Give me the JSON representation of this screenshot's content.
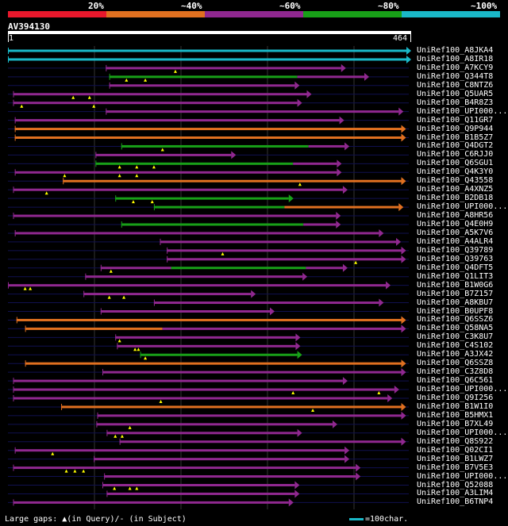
{
  "legend": {
    "segments": [
      {
        "label": "20%",
        "color": "#e8182c"
      },
      {
        "label": "~40%",
        "color": "#e07020"
      },
      {
        "label": "~60%",
        "color": "#902890"
      },
      {
        "label": "~80%",
        "color": "#18a018"
      },
      {
        "label": "~100%",
        "color": "#1ab8c8"
      }
    ]
  },
  "query": {
    "id": "AV394130",
    "start": "1",
    "end": "464",
    "length": 464
  },
  "colors": {
    "cyan": "#1ab8c8",
    "green": "#18a018",
    "purple": "#902890",
    "orange": "#e07020",
    "red": "#e8182c",
    "gap": "#ffff00"
  },
  "hits": [
    {
      "label": "UniRef100_A8JKA4",
      "color": "cyan",
      "start": 0,
      "end": 464,
      "gaps_q": [],
      "gaps_s": []
    },
    {
      "label": "UniRef100_A8IR18",
      "color": "cyan",
      "start": 0,
      "end": 464,
      "gaps_q": [],
      "gaps_s": []
    },
    {
      "label": "UniRef100_A7KCY9",
      "color": "purple",
      "start": 114,
      "end": 388,
      "gaps_q": [
        195
      ],
      "gaps_s": []
    },
    {
      "label": "UniRef100_Q344T8",
      "color": "green",
      "start": 118,
      "end": 337,
      "gaps_q": [
        138,
        160
      ],
      "gaps_s": [],
      "tail": {
        "color": "purple",
        "start": 337,
        "end": 415
      }
    },
    {
      "label": "UniRef100_C8NTZ6",
      "color": "purple",
      "start": 118,
      "end": 334,
      "gaps_q": [],
      "gaps_s": []
    },
    {
      "label": "UniRef100_Q5UAR5",
      "color": "purple",
      "start": 6,
      "end": 348,
      "gaps_q": [
        76,
        95
      ],
      "gaps_s": []
    },
    {
      "label": "UniRef100_B4R8Z3",
      "color": "purple",
      "start": 6,
      "end": 337,
      "gaps_q": [
        16,
        100
      ],
      "gaps_s": []
    },
    {
      "label": "UniRef100_UPI000...",
      "color": "purple",
      "start": 114,
      "end": 455,
      "gaps_q": [],
      "gaps_s": []
    },
    {
      "label": "UniRef100_Q11GR7",
      "color": "purple",
      "start": 8,
      "end": 386,
      "gaps_q": [],
      "gaps_s": []
    },
    {
      "label": "UniRef100_Q9P944",
      "color": "orange",
      "start": 8,
      "end": 458,
      "gaps_q": [],
      "gaps_s": []
    },
    {
      "label": "UniRef100_B1B5Z7",
      "color": "orange",
      "start": 8,
      "end": 458,
      "gaps_q": [],
      "gaps_s": []
    },
    {
      "label": "UniRef100_Q4DGT2",
      "color": "green",
      "start": 132,
      "end": 350,
      "gaps_q": [
        180
      ],
      "gaps_s": [],
      "tail": {
        "color": "purple",
        "start": 350,
        "end": 392
      }
    },
    {
      "label": "UniRef100_C6RJJ0",
      "color": "purple",
      "start": 102,
      "end": 260,
      "gaps_q": [],
      "gaps_s": []
    },
    {
      "label": "UniRef100_Q6SGU1",
      "color": "green",
      "start": 102,
      "end": 332,
      "gaps_q": [
        130,
        150,
        170
      ],
      "gaps_s": [],
      "tail": {
        "color": "purple",
        "start": 332,
        "end": 383
      }
    },
    {
      "label": "UniRef100_Q4K3Y0",
      "color": "purple",
      "start": 8,
      "end": 383,
      "gaps_q": [
        66,
        130,
        150
      ],
      "gaps_s": []
    },
    {
      "label": "UniRef100_Q43558",
      "color": "orange",
      "start": 64,
      "end": 458,
      "gaps_q": [
        340
      ],
      "gaps_s": []
    },
    {
      "label": "UniRef100_A4XNZ5",
      "color": "purple",
      "start": 6,
      "end": 390,
      "gaps_q": [
        45
      ],
      "gaps_s": []
    },
    {
      "label": "UniRef100_B2DB18",
      "color": "green",
      "start": 125,
      "end": 327,
      "gaps_q": [
        146,
        168
      ],
      "gaps_s": []
    },
    {
      "label": "UniRef100_UPI000...",
      "color": "green",
      "start": 170,
      "end": 322,
      "gaps_q": [],
      "gaps_s": [],
      "tail": {
        "color": "orange",
        "start": 322,
        "end": 455
      }
    },
    {
      "label": "UniRef100_A8HR56",
      "color": "purple",
      "start": 6,
      "end": 382,
      "gaps_q": [],
      "gaps_s": []
    },
    {
      "label": "UniRef100_Q4E0H9",
      "color": "green",
      "start": 132,
      "end": 344,
      "gaps_q": [],
      "gaps_s": [],
      "tail": {
        "color": "purple",
        "start": 344,
        "end": 382
      }
    },
    {
      "label": "UniRef100_A5K7V6",
      "color": "purple",
      "start": 8,
      "end": 432,
      "gaps_q": [],
      "gaps_s": []
    },
    {
      "label": "UniRef100_A4ALR4",
      "color": "purple",
      "start": 177,
      "end": 452,
      "gaps_q": [],
      "gaps_s": []
    },
    {
      "label": "UniRef100_Q39789",
      "color": "purple",
      "start": 185,
      "end": 458,
      "gaps_q": [
        250
      ],
      "gaps_s": []
    },
    {
      "label": "UniRef100_Q39763",
      "color": "purple",
      "start": 185,
      "end": 458,
      "gaps_q": [
        405
      ],
      "gaps_s": []
    },
    {
      "label": "UniRef100_Q4DFT5",
      "color": "green",
      "start": 190,
      "end": 347,
      "gaps_q": [
        120
      ],
      "gaps_s": [],
      "lead": {
        "color": "purple",
        "start": 108,
        "end": 190
      },
      "tail": {
        "color": "purple",
        "start": 347,
        "end": 390
      }
    },
    {
      "label": "UniRef100_Q1LIT3",
      "color": "purple",
      "start": 90,
      "end": 343,
      "gaps_q": [],
      "gaps_s": []
    },
    {
      "label": "UniRef100_B1W0G6",
      "color": "purple",
      "start": 0,
      "end": 440,
      "gaps_q": [
        20,
        26
      ],
      "gaps_s": []
    },
    {
      "label": "UniRef100_B7Z157",
      "color": "purple",
      "start": 88,
      "end": 283,
      "gaps_q": [
        118,
        135
      ],
      "gaps_s": []
    },
    {
      "label": "UniRef100_A8KBU7",
      "color": "purple",
      "start": 170,
      "end": 432,
      "gaps_q": [],
      "gaps_s": []
    },
    {
      "label": "UniRef100_B0UPF8",
      "color": "purple",
      "start": 108,
      "end": 305,
      "gaps_q": [],
      "gaps_s": []
    },
    {
      "label": "UniRef100_Q6SSZ6",
      "color": "orange",
      "start": 10,
      "end": 458,
      "gaps_q": [],
      "gaps_s": []
    },
    {
      "label": "UniRef100_Q58NA5",
      "color": "orange",
      "start": 20,
      "end": 180,
      "gaps_q": [],
      "gaps_s": [],
      "tail": {
        "color": "purple",
        "start": 180,
        "end": 458
      }
    },
    {
      "label": "UniRef100_C3K8U7",
      "color": "purple",
      "start": 125,
      "end": 335,
      "gaps_q": [
        130
      ],
      "gaps_s": []
    },
    {
      "label": "UniRef100_C4S102",
      "color": "purple",
      "start": 127,
      "end": 335,
      "gaps_q": [
        148,
        152
      ],
      "gaps_s": []
    },
    {
      "label": "UniRef100_A3JX42",
      "color": "green",
      "start": 154,
      "end": 337,
      "gaps_q": [
        160
      ],
      "gaps_s": []
    },
    {
      "label": "UniRef100_Q6SSZ8",
      "color": "orange",
      "start": 20,
      "end": 458,
      "gaps_q": [],
      "gaps_s": []
    },
    {
      "label": "UniRef100_C3Z8D8",
      "color": "purple",
      "start": 110,
      "end": 458,
      "gaps_q": [],
      "gaps_s": []
    },
    {
      "label": "UniRef100_Q6C561",
      "color": "purple",
      "start": 6,
      "end": 390,
      "gaps_q": [],
      "gaps_s": []
    },
    {
      "label": "UniRef100_UPI000...",
      "color": "purple",
      "start": 6,
      "end": 450,
      "gaps_q": [
        332,
        432
      ],
      "gaps_s": []
    },
    {
      "label": "UniRef100_Q9I256",
      "color": "purple",
      "start": 6,
      "end": 442,
      "gaps_q": [
        178
      ],
      "gaps_s": []
    },
    {
      "label": "UniRef100_B1W1I0",
      "color": "orange",
      "start": 62,
      "end": 458,
      "gaps_q": [
        355
      ],
      "gaps_s": []
    },
    {
      "label": "UniRef100_B5HMX1",
      "color": "purple",
      "start": 104,
      "end": 458,
      "gaps_q": [],
      "gaps_s": []
    },
    {
      "label": "UniRef100_B7XL49",
      "color": "purple",
      "start": 103,
      "end": 378,
      "gaps_q": [
        142
      ],
      "gaps_s": []
    },
    {
      "label": "UniRef100_UPI000...",
      "color": "purple",
      "start": 115,
      "end": 337,
      "gaps_q": [
        125,
        133
      ],
      "gaps_s": []
    },
    {
      "label": "UniRef100_Q8S922",
      "color": "purple",
      "start": 130,
      "end": 458,
      "gaps_q": [],
      "gaps_s": []
    },
    {
      "label": "UniRef100_Q02CI1",
      "color": "purple",
      "start": 8,
      "end": 392,
      "gaps_q": [
        52
      ],
      "gaps_s": []
    },
    {
      "label": "UniRef100_B1LWZ7",
      "color": "purple",
      "start": 100,
      "end": 392,
      "gaps_q": [],
      "gaps_s": []
    },
    {
      "label": "UniRef100_B7V5E3",
      "color": "purple",
      "start": 6,
      "end": 405,
      "gaps_q": [
        68,
        78,
        88
      ],
      "gaps_s": []
    },
    {
      "label": "UniRef100_UPI000...",
      "color": "purple",
      "start": 112,
      "end": 405,
      "gaps_q": [],
      "gaps_s": []
    },
    {
      "label": "UniRef100_Q52088",
      "color": "purple",
      "start": 110,
      "end": 334,
      "gaps_q": [
        124,
        142,
        150
      ],
      "gaps_s": []
    },
    {
      "label": "UniRef100_A3LIM4",
      "color": "purple",
      "start": 115,
      "end": 334,
      "gaps_q": [],
      "gaps_s": []
    },
    {
      "label": "UniRef100_B6TNP4",
      "color": "purple",
      "start": 6,
      "end": 327,
      "gaps_q": [],
      "gaps_s": []
    }
  ],
  "footer": {
    "text": "Large gaps: ▲(in Query)/- (in Subject)",
    "scale_text": "=100char."
  }
}
